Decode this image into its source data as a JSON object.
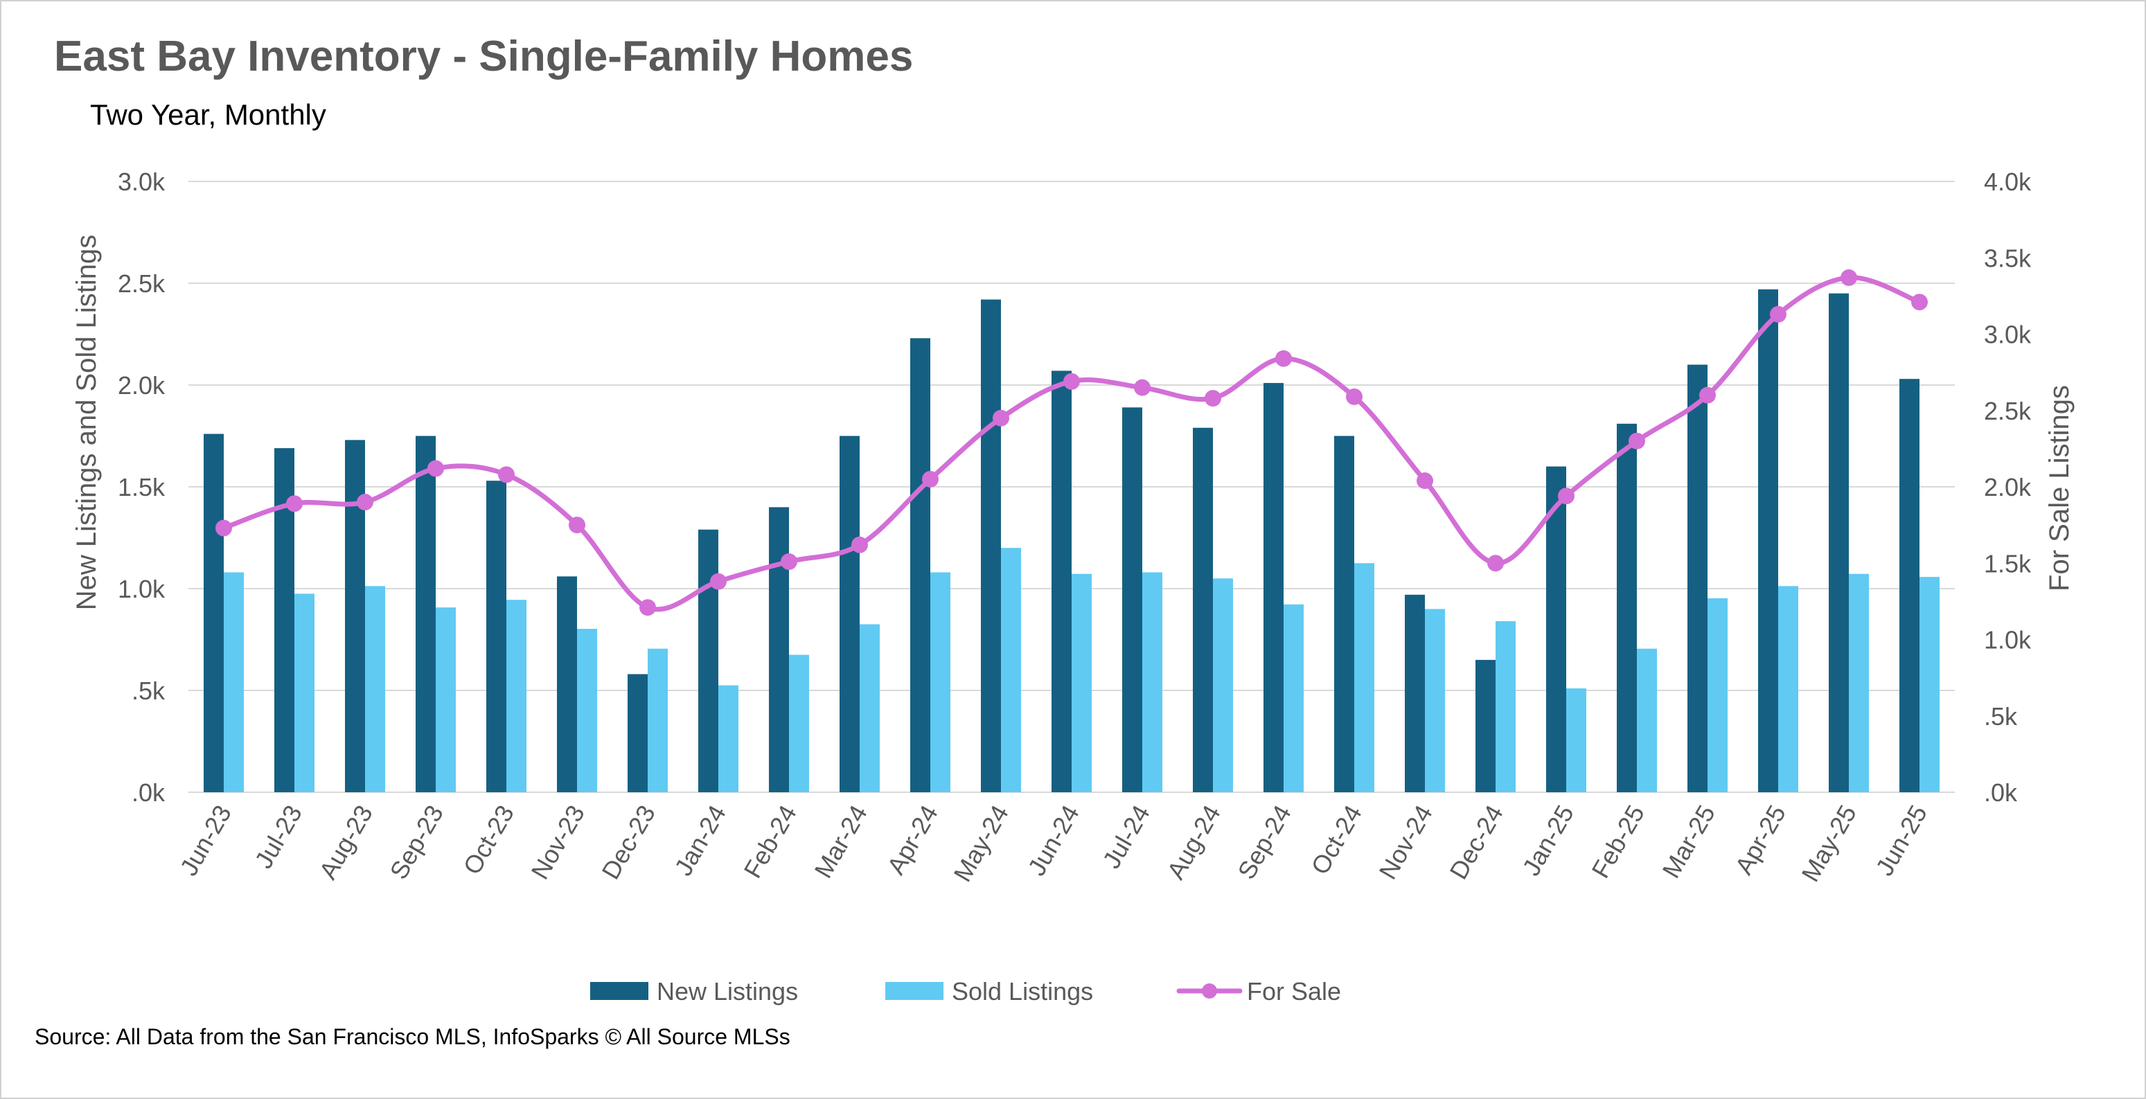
{
  "chart_data": {
    "type": "bar",
    "title": "East Bay Inventory - Single-Family Homes",
    "subtitle": "Two Year, Monthly",
    "categories": [
      "Jun-23",
      "Jul-23",
      "Aug-23",
      "Sep-23",
      "Oct-23",
      "Nov-23",
      "Dec-23",
      "Jan-24",
      "Feb-24",
      "Mar-24",
      "Apr-24",
      "May-24",
      "Jun-24",
      "Jul-24",
      "Aug-24",
      "Sep-24",
      "Oct-24",
      "Nov-24",
      "Dec-24",
      "Jan-25",
      "Feb-25",
      "Mar-25",
      "Apr-25",
      "May-25",
      "Jun-25"
    ],
    "series": [
      {
        "name": "New Listings",
        "type": "bar",
        "axis": "left",
        "color": "#156082",
        "values": [
          1760,
          1690,
          1730,
          1750,
          1530,
          1060,
          580,
          1290,
          1400,
          1750,
          2230,
          2420,
          2070,
          1890,
          1790,
          2010,
          1750,
          970,
          650,
          1600,
          1810,
          2100,
          2470,
          2450,
          2030
        ]
      },
      {
        "name": "Sold Listings",
        "type": "bar",
        "axis": "right",
        "color": "#60CAF3",
        "values": [
          1440,
          1300,
          1350,
          1210,
          1260,
          1070,
          940,
          700,
          900,
          1100,
          1440,
          1600,
          1430,
          1440,
          1400,
          1230,
          1500,
          1200,
          1120,
          680,
          940,
          1270,
          1350,
          1430,
          1410
        ]
      },
      {
        "name": "For Sale",
        "type": "line",
        "axis": "right",
        "color": "#D36FD7",
        "values": [
          1730,
          1890,
          1900,
          2120,
          2080,
          1750,
          1210,
          1380,
          1510,
          1620,
          2050,
          2450,
          2690,
          2650,
          2580,
          2840,
          2590,
          2040,
          1500,
          1940,
          2300,
          2600,
          3130,
          3370,
          3210
        ]
      }
    ],
    "y_left": {
      "label": "New Listings and Sold Listings",
      "ylim": [
        0,
        3000
      ],
      "ticks": [
        ".0k",
        ".5k",
        "1.0k",
        "1.5k",
        "2.0k",
        "2.5k",
        "3.0k"
      ]
    },
    "y_right": {
      "label": "For Sale Listings",
      "ylim": [
        0,
        4000
      ],
      "ticks": [
        ".0k",
        ".5k",
        "1.0k",
        "1.5k",
        "2.0k",
        "2.5k",
        "3.0k",
        "3.5k",
        "4.0k"
      ]
    },
    "grid": true,
    "legend": "bottom-center",
    "source": "Source: All Data from the San Francisco MLS, InfoSparks © All Source MLSs"
  }
}
